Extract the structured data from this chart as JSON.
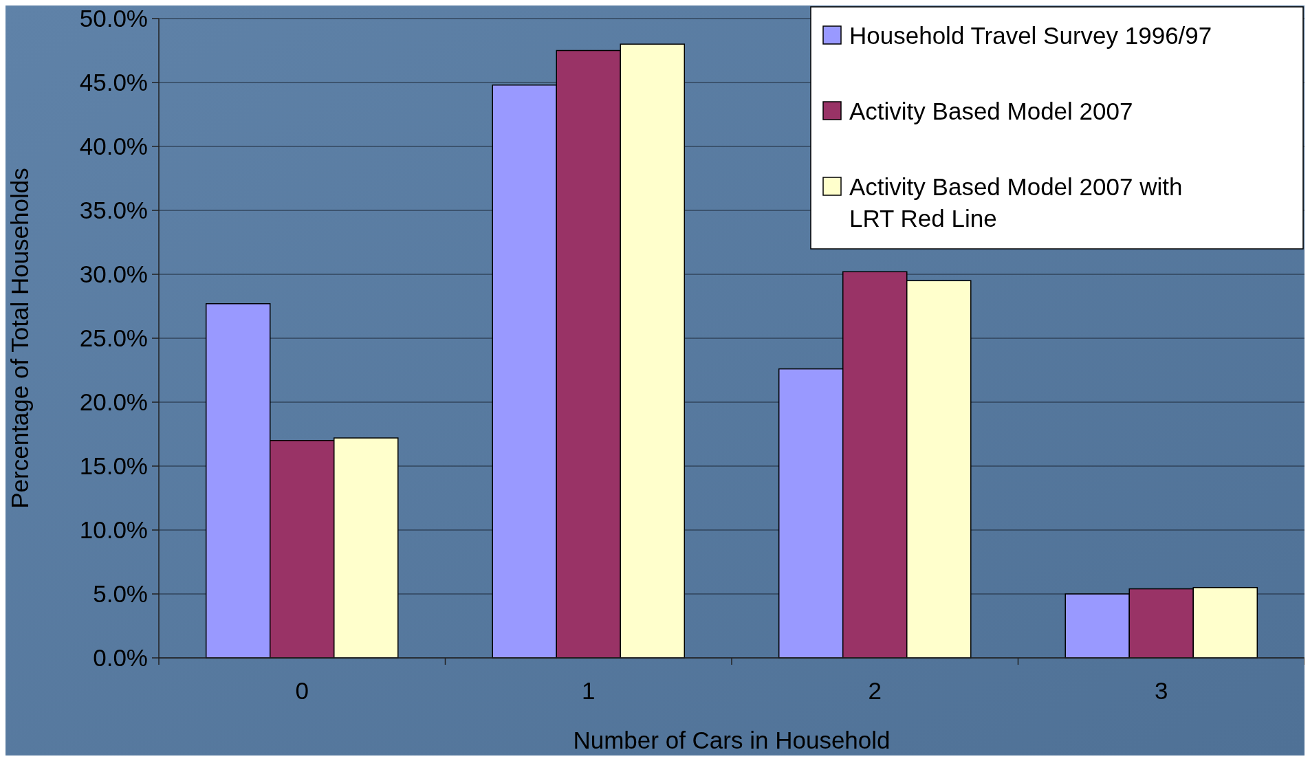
{
  "chart_data": {
    "type": "bar",
    "xlabel": "Number of Cars in Household",
    "ylabel": "Percentage of Total Households",
    "categories": [
      "0",
      "1",
      "2",
      "3"
    ],
    "series": [
      {
        "name": "Household Travel Survey 1996/97",
        "color": "#9999ff",
        "values": [
          27.7,
          44.8,
          22.6,
          5.0
        ]
      },
      {
        "name": "Activity Based Model 2007",
        "color": "#993366",
        "values": [
          17.0,
          47.5,
          30.2,
          5.4
        ]
      },
      {
        "name": "Activity Based Model 2007 with LRT Red Line",
        "color": "#ffffcc",
        "values": [
          17.2,
          48.0,
          29.5,
          5.5
        ]
      }
    ],
    "ylim": [
      0,
      50
    ],
    "yticks": [
      {
        "value": 0,
        "label": "0.0%"
      },
      {
        "value": 5,
        "label": "5.0%"
      },
      {
        "value": 10,
        "label": "10.0%"
      },
      {
        "value": 15,
        "label": "15.0%"
      },
      {
        "value": 20,
        "label": "20.0%"
      },
      {
        "value": 25,
        "label": "25.0%"
      },
      {
        "value": 30,
        "label": "30.0%"
      },
      {
        "value": 35,
        "label": "35.0%"
      },
      {
        "value": 40,
        "label": "40.0%"
      },
      {
        "value": 45,
        "label": "45.0%"
      },
      {
        "value": 50,
        "label": "50.0%"
      }
    ],
    "grid": "y",
    "legend": "top right"
  }
}
